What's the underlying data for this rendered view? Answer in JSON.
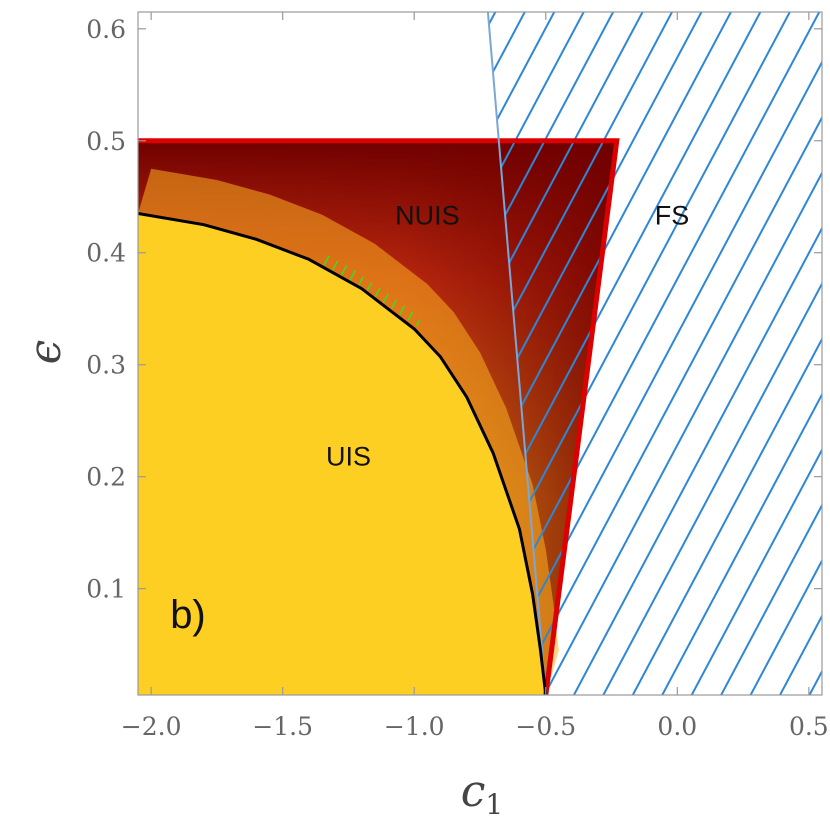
{
  "chart_data": {
    "type": "area",
    "title": "",
    "panel_label": "b)",
    "xlabel": "c",
    "xlabel_subscript": "1",
    "ylabel": "ϵ",
    "xlim": [
      -2.05,
      0.55
    ],
    "ylim": [
      0.005,
      0.615
    ],
    "x_ticks": [
      {
        "value": -2.0,
        "label": "−2.0"
      },
      {
        "value": -1.5,
        "label": "−1.5"
      },
      {
        "value": -1.0,
        "label": "−1.0"
      },
      {
        "value": -0.5,
        "label": "−0.5"
      },
      {
        "value": 0.0,
        "label": "0.0"
      },
      {
        "value": 0.5,
        "label": "0.5"
      }
    ],
    "y_ticks": [
      {
        "value": 0.1,
        "label": "0.1"
      },
      {
        "value": 0.2,
        "label": "0.2"
      },
      {
        "value": 0.3,
        "label": "0.3"
      },
      {
        "value": 0.4,
        "label": "0.4"
      },
      {
        "value": 0.5,
        "label": "0.5"
      },
      {
        "value": 0.6,
        "label": "0.6"
      }
    ],
    "grid": false,
    "colors": {
      "uis": "#fdcf23",
      "nuis_light": "#fdb020",
      "nuis_mid": "#c83010",
      "nuis_dark": "#700000",
      "boundary_red": "#dd0000",
      "critical_curve": "#000000",
      "fs_hatch": "#2e86d6",
      "green_hatch": "#22ee22",
      "axis": "#999999"
    },
    "regions": [
      {
        "name": "UIS",
        "label_pos": [
          -1.25,
          0.21
        ]
      },
      {
        "name": "NUIS",
        "label_pos": [
          -0.95,
          0.425
        ]
      },
      {
        "name": "FS",
        "label_pos": [
          -0.02,
          0.425
        ]
      }
    ],
    "panel_label_pos": [
      -1.86,
      0.065
    ],
    "unstable_region": {
      "eps_max": 0.5,
      "right_edge": [
        [
          -0.5,
          0.005
        ],
        [
          -0.23,
          0.5
        ]
      ]
    },
    "critical_curve": [
      [
        -2.05,
        0.435
      ],
      [
        -1.8,
        0.425
      ],
      [
        -1.6,
        0.412
      ],
      [
        -1.4,
        0.394
      ],
      [
        -1.2,
        0.368
      ],
      [
        -1.0,
        0.332
      ],
      [
        -0.9,
        0.307
      ],
      [
        -0.8,
        0.271
      ],
      [
        -0.7,
        0.221
      ],
      [
        -0.6,
        0.153
      ],
      [
        -0.55,
        0.095
      ],
      [
        -0.52,
        0.045
      ],
      [
        -0.5,
        0.005
      ]
    ],
    "fs_boundary": [
      [
        -0.72,
        0.615
      ],
      [
        -0.5,
        0.005
      ]
    ],
    "green_hatch_region": {
      "upper": [
        [
          -1.35,
          0.39
        ],
        [
          -1.25,
          0.378
        ],
        [
          -1.15,
          0.362
        ],
        [
          -1.05,
          0.345
        ],
        [
          -0.98,
          0.333
        ]
      ],
      "lower": [
        [
          -1.35,
          0.39
        ],
        [
          -1.2,
          0.368
        ],
        [
          -1.1,
          0.352
        ],
        [
          -0.98,
          0.333
        ]
      ]
    }
  }
}
